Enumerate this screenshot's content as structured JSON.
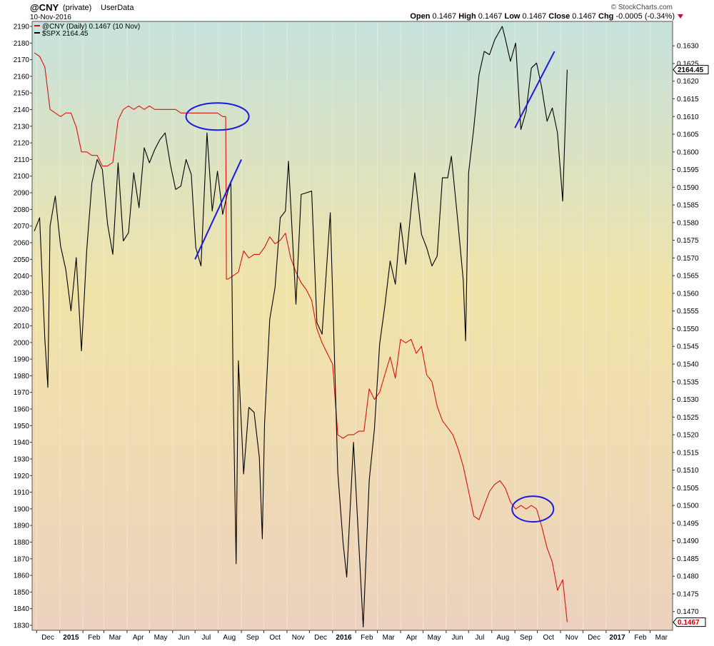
{
  "header": {
    "symbol": "@CNY",
    "privacy": "(private)",
    "source": "UserData",
    "date": "10-Nov-2016",
    "attribution": "© StockCharts.com",
    "ohlc": {
      "open_label": "Open",
      "open": "0.1467",
      "high_label": "High",
      "high": "0.1467",
      "low_label": "Low",
      "low": "0.1467",
      "close_label": "Close",
      "close": "0.1467",
      "chg_label": "Chg",
      "chg": "-0.0005 (-0.34%)"
    }
  },
  "legend": [
    {
      "text": "@CNY (Daily) 0.1467 (10 Nov)",
      "color": "#dd1111"
    },
    {
      "text": "$SPX 2164.45",
      "color": "#000000"
    }
  ],
  "colors": {
    "cny": "#dd1111",
    "spx": "#000000",
    "annotation": "#1a1ae6",
    "bg_top": "#c6e2dc",
    "bg_mid": "#f1e3a8",
    "bg_bottom": "#ecd2be"
  },
  "chart_data": {
    "type": "line",
    "x_range": [
      "2014-11-25",
      "2017-03-31"
    ],
    "x_ticks": [
      "Dec",
      "2015",
      "Feb",
      "Mar",
      "Apr",
      "May",
      "Jun",
      "Jul",
      "Aug",
      "Sep",
      "Oct",
      "Nov",
      "Dec",
      "2016",
      "Feb",
      "Mar",
      "Apr",
      "May",
      "Jun",
      "Jul",
      "Aug",
      "Sep",
      "Oct",
      "Nov",
      "Dec",
      "2017",
      "Feb",
      "Mar"
    ],
    "x_tick_dates": [
      "2014-12-01",
      "2015-01-01",
      "2015-02-01",
      "2015-03-01",
      "2015-04-01",
      "2015-05-01",
      "2015-06-01",
      "2015-07-01",
      "2015-08-01",
      "2015-09-01",
      "2015-10-01",
      "2015-11-01",
      "2015-12-01",
      "2016-01-01",
      "2016-02-01",
      "2016-03-01",
      "2016-04-01",
      "2016-05-01",
      "2016-06-01",
      "2016-07-01",
      "2016-08-01",
      "2016-09-01",
      "2016-10-01",
      "2016-11-01",
      "2016-12-01",
      "2017-01-01",
      "2017-02-01",
      "2017-03-01"
    ],
    "bold_ticks": [
      "2015",
      "2016",
      "2017"
    ],
    "left_axis": {
      "min": 1827,
      "max": 2193,
      "ticks": [
        1830,
        1840,
        1850,
        1860,
        1870,
        1880,
        1890,
        1900,
        1910,
        1920,
        1930,
        1940,
        1950,
        1960,
        1970,
        1980,
        1990,
        2000,
        2010,
        2020,
        2030,
        2040,
        2050,
        2060,
        2070,
        2080,
        2090,
        2100,
        2110,
        2120,
        2130,
        2140,
        2150,
        2160,
        2170,
        2180,
        2190
      ]
    },
    "right_axis": {
      "min": 0.14647,
      "max": 0.16369,
      "ticks": [
        "0.1470",
        "0.1475",
        "0.1480",
        "0.1485",
        "0.1490",
        "0.1495",
        "0.1500",
        "0.1505",
        "0.1510",
        "0.1515",
        "0.1520",
        "0.1525",
        "0.1530",
        "0.1535",
        "0.1540",
        "0.1545",
        "0.1550",
        "0.1555",
        "0.1560",
        "0.1565",
        "0.1570",
        "0.1575",
        "0.1580",
        "0.1585",
        "0.1590",
        "0.1595",
        "0.1600",
        "0.1605",
        "0.1610",
        "0.1615",
        "0.1620",
        "0.1625",
        "0.1630"
      ]
    },
    "series": [
      {
        "name": "@CNY (Daily) 0.1467 (10 Nov)",
        "axis": "right",
        "points": [
          [
            "2014-11-28",
            0.1628
          ],
          [
            "2014-12-05",
            0.1627
          ],
          [
            "2014-12-12",
            0.1624
          ],
          [
            "2014-12-19",
            0.1612
          ],
          [
            "2014-12-26",
            0.1611
          ],
          [
            "2015-01-02",
            0.161
          ],
          [
            "2015-01-09",
            0.1611
          ],
          [
            "2015-01-16",
            0.1611
          ],
          [
            "2015-01-23",
            0.1607
          ],
          [
            "2015-01-30",
            0.16
          ],
          [
            "2015-02-06",
            0.16
          ],
          [
            "2015-02-13",
            0.1599
          ],
          [
            "2015-02-20",
            0.1599
          ],
          [
            "2015-02-27",
            0.1596
          ],
          [
            "2015-03-06",
            0.1596
          ],
          [
            "2015-03-13",
            0.1597
          ],
          [
            "2015-03-20",
            0.1609
          ],
          [
            "2015-03-27",
            0.1612
          ],
          [
            "2015-04-03",
            0.1613
          ],
          [
            "2015-04-10",
            0.1612
          ],
          [
            "2015-04-17",
            0.1613
          ],
          [
            "2015-04-24",
            0.1612
          ],
          [
            "2015-05-01",
            0.1613
          ],
          [
            "2015-05-08",
            0.1612
          ],
          [
            "2015-05-15",
            0.1612
          ],
          [
            "2015-05-22",
            0.1612
          ],
          [
            "2015-05-29",
            0.1612
          ],
          [
            "2015-06-05",
            0.1612
          ],
          [
            "2015-06-12",
            0.1611
          ],
          [
            "2015-06-19",
            0.1611
          ],
          [
            "2015-06-26",
            0.1611
          ],
          [
            "2015-07-03",
            0.1611
          ],
          [
            "2015-07-10",
            0.1611
          ],
          [
            "2015-07-17",
            0.1611
          ],
          [
            "2015-07-24",
            0.1611
          ],
          [
            "2015-07-31",
            0.1611
          ],
          [
            "2015-08-07",
            0.161
          ],
          [
            "2015-08-11",
            0.161
          ],
          [
            "2015-08-12",
            0.1564
          ],
          [
            "2015-08-14",
            0.1564
          ],
          [
            "2015-08-21",
            0.1565
          ],
          [
            "2015-08-28",
            0.1566
          ],
          [
            "2015-09-04",
            0.1572
          ],
          [
            "2015-09-11",
            0.157
          ],
          [
            "2015-09-18",
            0.1571
          ],
          [
            "2015-09-25",
            0.1571
          ],
          [
            "2015-10-02",
            0.1573
          ],
          [
            "2015-10-09",
            0.1576
          ],
          [
            "2015-10-16",
            0.1574
          ],
          [
            "2015-10-23",
            0.1575
          ],
          [
            "2015-10-30",
            0.1577
          ],
          [
            "2015-11-06",
            0.157
          ],
          [
            "2015-11-13",
            0.1566
          ],
          [
            "2015-11-20",
            0.1563
          ],
          [
            "2015-11-27",
            0.1561
          ],
          [
            "2015-12-04",
            0.1558
          ],
          [
            "2015-12-11",
            0.155
          ],
          [
            "2015-12-18",
            0.1546
          ],
          [
            "2015-12-25",
            0.1543
          ],
          [
            "2016-01-01",
            0.154
          ],
          [
            "2016-01-08",
            0.152
          ],
          [
            "2016-01-15",
            0.1519
          ],
          [
            "2016-01-22",
            0.152
          ],
          [
            "2016-01-29",
            0.152
          ],
          [
            "2016-02-05",
            0.1521
          ],
          [
            "2016-02-12",
            0.1521
          ],
          [
            "2016-02-19",
            0.1533
          ],
          [
            "2016-02-26",
            0.153
          ],
          [
            "2016-03-04",
            0.1532
          ],
          [
            "2016-03-11",
            0.1537
          ],
          [
            "2016-03-18",
            0.1542
          ],
          [
            "2016-03-25",
            0.1536
          ],
          [
            "2016-04-01",
            0.1547
          ],
          [
            "2016-04-08",
            0.1546
          ],
          [
            "2016-04-15",
            0.1547
          ],
          [
            "2016-04-22",
            0.1543
          ],
          [
            "2016-04-29",
            0.1545
          ],
          [
            "2016-05-06",
            0.1537
          ],
          [
            "2016-05-13",
            0.1535
          ],
          [
            "2016-05-20",
            0.1528
          ],
          [
            "2016-05-27",
            0.1524
          ],
          [
            "2016-06-03",
            0.1522
          ],
          [
            "2016-06-10",
            0.152
          ],
          [
            "2016-06-17",
            0.1516
          ],
          [
            "2016-06-24",
            0.1511
          ],
          [
            "2016-07-01",
            0.1504
          ],
          [
            "2016-07-08",
            0.1497
          ],
          [
            "2016-07-15",
            0.1496
          ],
          [
            "2016-07-22",
            0.15
          ],
          [
            "2016-07-29",
            0.1504
          ],
          [
            "2016-08-05",
            0.1506
          ],
          [
            "2016-08-12",
            0.1507
          ],
          [
            "2016-08-19",
            0.1505
          ],
          [
            "2016-08-26",
            0.1501
          ],
          [
            "2016-09-02",
            0.1499
          ],
          [
            "2016-09-09",
            0.15
          ],
          [
            "2016-09-16",
            0.1499
          ],
          [
            "2016-09-23",
            0.15
          ],
          [
            "2016-09-30",
            0.1499
          ],
          [
            "2016-10-07",
            0.1494
          ],
          [
            "2016-10-14",
            0.1488
          ],
          [
            "2016-10-21",
            0.1484
          ],
          [
            "2016-10-28",
            0.1476
          ],
          [
            "2016-11-04",
            0.1479
          ],
          [
            "2016-11-10",
            0.1467
          ]
        ]
      },
      {
        "name": "$SPX 2164.45",
        "axis": "left",
        "points": [
          [
            "2014-11-28",
            2067
          ],
          [
            "2014-12-05",
            2075
          ],
          [
            "2014-12-12",
            2002
          ],
          [
            "2014-12-16",
            1973
          ],
          [
            "2014-12-19",
            2070
          ],
          [
            "2014-12-26",
            2088
          ],
          [
            "2015-01-02",
            2058
          ],
          [
            "2015-01-09",
            2044
          ],
          [
            "2015-01-16",
            2019
          ],
          [
            "2015-01-23",
            2051
          ],
          [
            "2015-01-30",
            1995
          ],
          [
            "2015-02-06",
            2055
          ],
          [
            "2015-02-13",
            2096
          ],
          [
            "2015-02-20",
            2110
          ],
          [
            "2015-02-27",
            2104
          ],
          [
            "2015-03-06",
            2071
          ],
          [
            "2015-03-13",
            2053
          ],
          [
            "2015-03-20",
            2108
          ],
          [
            "2015-03-27",
            2061
          ],
          [
            "2015-04-03",
            2066
          ],
          [
            "2015-04-10",
            2102
          ],
          [
            "2015-04-17",
            2081
          ],
          [
            "2015-04-24",
            2117
          ],
          [
            "2015-05-01",
            2108
          ],
          [
            "2015-05-08",
            2116
          ],
          [
            "2015-05-15",
            2122
          ],
          [
            "2015-05-22",
            2126
          ],
          [
            "2015-05-29",
            2107
          ],
          [
            "2015-06-05",
            2092
          ],
          [
            "2015-06-12",
            2094
          ],
          [
            "2015-06-19",
            2110
          ],
          [
            "2015-06-26",
            2101
          ],
          [
            "2015-07-02",
            2057
          ],
          [
            "2015-07-09",
            2046
          ],
          [
            "2015-07-17",
            2126
          ],
          [
            "2015-07-24",
            2079
          ],
          [
            "2015-07-31",
            2103
          ],
          [
            "2015-08-07",
            2077
          ],
          [
            "2015-08-14",
            2091
          ],
          [
            "2015-08-18",
            2096
          ],
          [
            "2015-08-21",
            1970
          ],
          [
            "2015-08-25",
            1867
          ],
          [
            "2015-08-28",
            1989
          ],
          [
            "2015-09-04",
            1921
          ],
          [
            "2015-09-11",
            1961
          ],
          [
            "2015-09-18",
            1958
          ],
          [
            "2015-09-25",
            1931
          ],
          [
            "2015-09-29",
            1882
          ],
          [
            "2015-10-02",
            1951
          ],
          [
            "2015-10-09",
            2014
          ],
          [
            "2015-10-16",
            2033
          ],
          [
            "2015-10-23",
            2075
          ],
          [
            "2015-10-30",
            2079
          ],
          [
            "2015-11-03",
            2109
          ],
          [
            "2015-11-13",
            2023
          ],
          [
            "2015-11-20",
            2089
          ],
          [
            "2015-11-27",
            2090
          ],
          [
            "2015-12-04",
            2091
          ],
          [
            "2015-12-11",
            2012
          ],
          [
            "2015-12-18",
            2005
          ],
          [
            "2015-12-29",
            2078
          ],
          [
            "2016-01-08",
            1922
          ],
          [
            "2016-01-15",
            1880
          ],
          [
            "2016-01-20",
            1859
          ],
          [
            "2016-01-29",
            1940
          ],
          [
            "2016-02-05",
            1880
          ],
          [
            "2016-02-11",
            1829
          ],
          [
            "2016-02-19",
            1917
          ],
          [
            "2016-02-26",
            1948
          ],
          [
            "2016-03-04",
            1999
          ],
          [
            "2016-03-11",
            2022
          ],
          [
            "2016-03-18",
            2049
          ],
          [
            "2016-03-25",
            2035
          ],
          [
            "2016-04-01",
            2072
          ],
          [
            "2016-04-08",
            2047
          ],
          [
            "2016-04-15",
            2080
          ],
          [
            "2016-04-20",
            2102
          ],
          [
            "2016-04-29",
            2065
          ],
          [
            "2016-05-06",
            2057
          ],
          [
            "2016-05-13",
            2046
          ],
          [
            "2016-05-20",
            2052
          ],
          [
            "2016-05-27",
            2099
          ],
          [
            "2016-06-03",
            2099
          ],
          [
            "2016-06-08",
            2112
          ],
          [
            "2016-06-17",
            2071
          ],
          [
            "2016-06-24",
            2037
          ],
          [
            "2016-06-27",
            2001
          ],
          [
            "2016-07-01",
            2102
          ],
          [
            "2016-07-08",
            2129
          ],
          [
            "2016-07-15",
            2161
          ],
          [
            "2016-07-22",
            2175
          ],
          [
            "2016-07-29",
            2173
          ],
          [
            "2016-08-05",
            2182
          ],
          [
            "2016-08-15",
            2190
          ],
          [
            "2016-08-19",
            2183
          ],
          [
            "2016-08-26",
            2169
          ],
          [
            "2016-09-02",
            2180
          ],
          [
            "2016-09-09",
            2128
          ],
          [
            "2016-09-16",
            2139
          ],
          [
            "2016-09-23",
            2165
          ],
          [
            "2016-09-30",
            2168
          ],
          [
            "2016-10-07",
            2153
          ],
          [
            "2016-10-14",
            2133
          ],
          [
            "2016-10-21",
            2141
          ],
          [
            "2016-10-28",
            2126
          ],
          [
            "2016-11-04",
            2085
          ],
          [
            "2016-11-08",
            2139
          ],
          [
            "2016-11-10",
            2164
          ]
        ]
      }
    ],
    "annotations": [
      {
        "type": "ellipse",
        "center": [
          "2015-07-31",
          0.161
        ],
        "label": ""
      },
      {
        "type": "line",
        "from": [
          "2015-07-01",
          2050
        ],
        "to": [
          "2015-09-01",
          2110
        ]
      },
      {
        "type": "ellipse",
        "center": [
          "2016-09-25",
          0.1499
        ],
        "label": ""
      },
      {
        "type": "line",
        "from": [
          "2016-09-01",
          2129
        ],
        "to": [
          "2016-10-24",
          2175
        ]
      }
    ],
    "last_value_labels": {
      "left": "2164.45",
      "right": "0.1467"
    }
  }
}
